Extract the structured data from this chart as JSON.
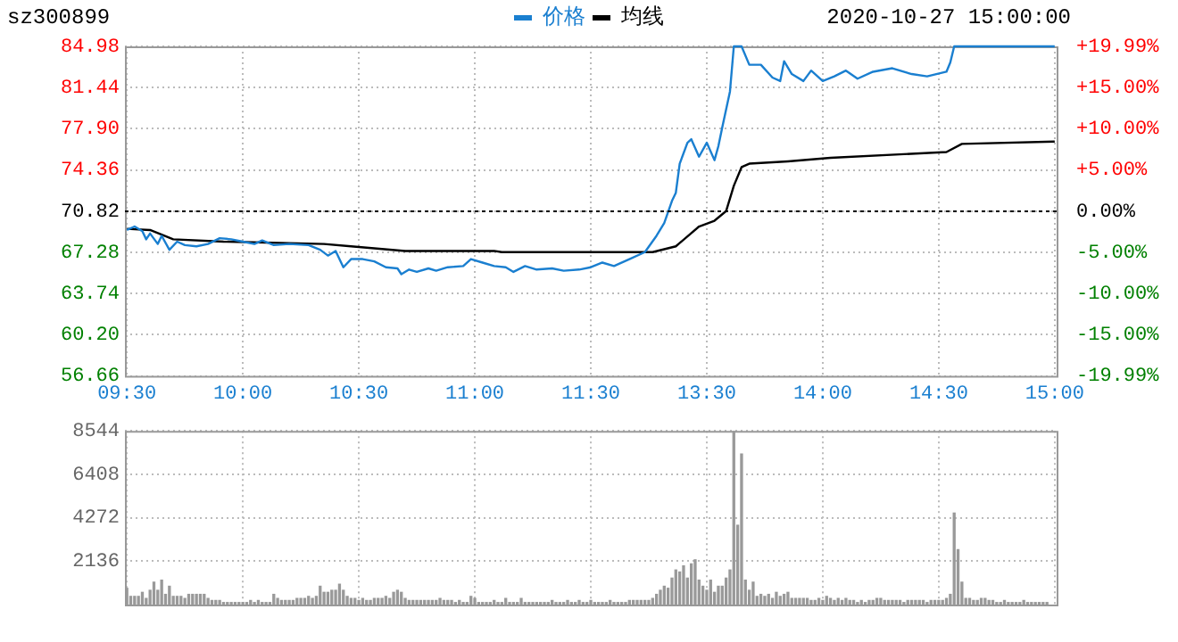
{
  "chart_data": [
    {
      "type": "line",
      "title": "sz300899",
      "subtitle": "2020-10-27 15:00:00",
      "legend": "top",
      "grid": true,
      "categories": [
        "09:30",
        null,
        null,
        null,
        null,
        null,
        null,
        null,
        null,
        null,
        null,
        null,
        null,
        null,
        null,
        null,
        null,
        null,
        null,
        null,
        null,
        null,
        null,
        null,
        null,
        null,
        null,
        null,
        null,
        null,
        "10:00",
        null,
        null,
        null,
        null,
        null,
        null,
        null,
        null,
        null,
        null,
        null,
        null,
        null,
        null,
        null,
        null,
        null,
        null,
        null,
        null,
        null,
        null,
        null,
        null,
        null,
        null,
        null,
        null,
        null,
        "10:30",
        null,
        null,
        null,
        null,
        null,
        null,
        null,
        null,
        null,
        null,
        null,
        null,
        null,
        null,
        null,
        null,
        null,
        null,
        null,
        null,
        null,
        null,
        null,
        null,
        null,
        null,
        null,
        null,
        null,
        "11:00",
        null,
        null,
        null,
        null,
        null,
        null,
        null,
        null,
        null,
        null,
        null,
        null,
        null,
        null,
        null,
        null,
        null,
        null,
        null,
        null,
        null,
        null,
        null,
        null,
        null,
        null,
        null,
        null,
        null,
        "11:30",
        null,
        null,
        null,
        null,
        null,
        null,
        null,
        null,
        null,
        null,
        null,
        null,
        null,
        null,
        null,
        null,
        null,
        null,
        null,
        null,
        null,
        null,
        null,
        null,
        null,
        null,
        null,
        null,
        null,
        "13:30",
        null,
        null,
        null,
        null,
        null,
        null,
        null,
        null,
        null,
        null,
        null,
        null,
        null,
        null,
        null,
        null,
        null,
        null,
        null,
        null,
        null,
        null,
        null,
        null,
        null,
        null,
        null,
        null,
        null,
        "14:00",
        null,
        null,
        null,
        null,
        null,
        null,
        null,
        null,
        null,
        null,
        null,
        null,
        null,
        null,
        null,
        null,
        null,
        null,
        null,
        null,
        null,
        null,
        null,
        null,
        null,
        null,
        null,
        null,
        null,
        "14:30",
        null,
        null,
        null,
        null,
        null,
        null,
        null,
        null,
        null,
        null,
        null,
        null,
        null,
        null,
        null,
        null,
        null,
        null,
        null,
        null,
        null,
        null,
        null,
        null,
        null,
        null,
        null,
        null,
        null,
        "15:00"
      ],
      "ylim": [
        56.66,
        84.98
      ],
      "yticks": [
        56.66,
        {
          "value": 60.2,
          "label": "60.20"
        },
        63.74,
        67.28,
        70.82,
        74.36,
        {
          "value": 77.9,
          "label": "77.90"
        },
        81.44,
        84.98
      ],
      "y2lim": [
        -19.99,
        19.99
      ],
      "y2ticks": [
        {
          "value": -19.99,
          "label": "-19.99%"
        },
        {
          "value": -15,
          "label": "-15.00%"
        },
        {
          "value": -10,
          "label": "-10.00%"
        },
        {
          "value": -5,
          "label": "-5.00%"
        },
        {
          "value": 0,
          "label": "0.00%"
        },
        {
          "value": 5,
          "label": "+5.00%"
        },
        {
          "value": 10,
          "label": "+10.00%"
        },
        {
          "value": 15,
          "label": "+15.00%"
        },
        {
          "value": 19.99,
          "label": "+19.99%"
        }
      ],
      "ref_lines": [
        {
          "axis": "y",
          "value": 70.82,
          "color": "#000000",
          "line_style": "dashed"
        }
      ],
      "series": [
        {
          "name": "价格",
          "color": "#1a7fd0",
          "values": [
            69.2,
            null,
            69.5,
            null,
            69.1,
            68.4,
            68.9,
            null,
            68.0,
            68.7,
            null,
            67.5,
            null,
            68.2,
            null,
            67.9,
            null,
            null,
            67.8,
            null,
            null,
            68.0,
            null,
            null,
            68.5,
            null,
            null,
            68.4,
            null,
            null,
            68.2,
            null,
            null,
            68.0,
            null,
            68.3,
            null,
            null,
            67.9,
            null,
            null,
            null,
            68.0,
            null,
            null,
            null,
            null,
            67.9,
            null,
            null,
            67.5,
            null,
            67.0,
            null,
            67.4,
            null,
            66.0,
            null,
            66.7,
            null,
            null,
            66.7,
            null,
            null,
            66.5,
            null,
            null,
            66.0,
            null,
            null,
            65.9,
            65.4,
            null,
            65.8,
            null,
            65.6,
            null,
            null,
            65.9,
            null,
            65.7,
            null,
            null,
            66.0,
            null,
            null,
            null,
            66.1,
            null,
            66.7,
            null,
            null,
            66.4,
            null,
            null,
            66.1,
            null,
            null,
            66.0,
            null,
            65.6,
            null,
            null,
            66.1,
            null,
            null,
            65.8,
            null,
            null,
            null,
            65.9,
            null,
            null,
            65.7,
            null,
            null,
            null,
            65.8,
            null,
            null,
            66.0,
            null,
            null,
            66.4,
            null,
            null,
            66.1,
            null,
            null,
            null,
            66.7,
            null,
            null,
            null,
            67.3,
            null,
            null,
            68.7,
            null,
            69.8,
            null,
            71.7,
            72.4,
            74.9,
            null,
            76.7,
            77.0,
            null,
            75.5,
            null,
            76.7,
            null,
            75.2,
            76.4,
            78.0,
            null,
            81.1,
            84.98,
            null,
            84.98,
            null,
            83.4,
            null,
            null,
            83.4,
            null,
            null,
            82.3,
            null,
            82.0,
            83.7,
            null,
            82.6,
            null,
            null,
            82.0,
            null,
            82.9,
            null,
            null,
            82.0,
            null,
            null,
            82.4,
            null,
            null,
            82.9,
            null,
            null,
            82.2,
            null,
            null,
            null,
            82.8,
            null,
            null,
            null,
            null,
            83.1,
            null,
            null,
            null,
            null,
            82.6,
            null,
            null,
            null,
            82.4,
            null,
            null,
            null,
            null,
            82.8,
            83.6,
            84.98,
            null,
            null,
            null,
            null,
            null,
            null,
            null,
            null,
            null,
            null,
            null,
            null,
            null,
            null,
            null,
            null,
            null,
            null,
            null,
            null,
            null,
            null,
            null,
            null,
            null,
            84.98
          ]
        },
        {
          "name": "均线",
          "color": "#000000",
          "values": [
            69.3,
            null,
            null,
            null,
            null,
            null,
            69.2,
            null,
            null,
            null,
            null,
            null,
            68.4,
            null,
            null,
            null,
            null,
            null,
            null,
            null,
            null,
            null,
            null,
            null,
            null,
            68.2,
            null,
            null,
            null,
            null,
            null,
            null,
            null,
            null,
            null,
            null,
            null,
            null,
            null,
            null,
            null,
            null,
            null,
            null,
            null,
            null,
            null,
            null,
            null,
            null,
            null,
            68.0,
            null,
            null,
            null,
            null,
            null,
            null,
            67.8,
            null,
            null,
            null,
            null,
            null,
            null,
            null,
            null,
            null,
            null,
            null,
            null,
            null,
            67.4,
            null,
            null,
            null,
            null,
            null,
            null,
            null,
            null,
            null,
            null,
            null,
            null,
            null,
            null,
            null,
            null,
            null,
            null,
            null,
            null,
            null,
            null,
            67.4,
            null,
            67.3,
            null,
            null,
            null,
            null,
            null,
            null,
            null,
            null,
            null,
            null,
            null,
            null,
            null,
            null,
            null,
            null,
            null,
            null,
            null,
            null,
            null,
            null,
            null,
            null,
            null,
            null,
            null,
            null,
            null,
            null,
            null,
            null,
            null,
            null,
            null,
            null,
            null,
            null,
            67.3,
            null,
            null,
            null,
            null,
            null,
            67.8,
            null,
            null,
            null,
            null,
            null,
            69.5,
            null,
            null,
            null,
            70.0,
            null,
            null,
            70.82,
            null,
            73.0,
            null,
            74.6,
            null,
            74.9,
            null,
            null,
            null,
            null,
            null,
            null,
            null,
            null,
            null,
            75.1,
            null,
            null,
            null,
            null,
            null,
            null,
            null,
            null,
            null,
            null,
            75.4,
            null,
            null,
            null,
            null,
            null,
            null,
            null,
            null,
            null,
            null,
            null,
            null,
            null,
            null,
            null,
            null,
            null,
            null,
            null,
            null,
            null,
            null,
            null,
            null,
            null,
            null,
            null,
            null,
            null,
            75.9,
            null,
            null,
            null,
            76.6,
            null,
            null,
            null,
            null,
            null,
            null,
            null,
            null,
            null,
            null,
            null,
            null,
            null,
            null,
            null,
            null,
            null,
            null,
            null,
            null,
            null,
            null,
            null,
            76.8
          ]
        }
      ]
    },
    {
      "type": "bar",
      "color": "#999999",
      "grid": true,
      "tick_labels": "y",
      "ylim": [
        0,
        8544
      ],
      "yticks": [
        2136,
        4272,
        6408,
        8544
      ],
      "categories": [
        null,
        null,
        null,
        null,
        null,
        null,
        null,
        null,
        null,
        null,
        null,
        null,
        null,
        null,
        null,
        null,
        null,
        null,
        null,
        null,
        null,
        null,
        null,
        null,
        null,
        null,
        null,
        null,
        null,
        null,
        null,
        null,
        null,
        null,
        null,
        null,
        null,
        null,
        null,
        null,
        null,
        null,
        null,
        null,
        null,
        null,
        null,
        null,
        null,
        null,
        null,
        null,
        null,
        null,
        null,
        null,
        null,
        null,
        null,
        null,
        null,
        null,
        null,
        null,
        null,
        null,
        null,
        null,
        null,
        null,
        null,
        null,
        null,
        null,
        null,
        null,
        null,
        null,
        null,
        null,
        null,
        null,
        null,
        null,
        null,
        null,
        null,
        null,
        null,
        null,
        null,
        null,
        null,
        null,
        null,
        null,
        null,
        null,
        null,
        null,
        null,
        null,
        null,
        null,
        null,
        null,
        null,
        null,
        null,
        null,
        null,
        null,
        null,
        null,
        null,
        null,
        null,
        null,
        null,
        null,
        null,
        null,
        null,
        null,
        null,
        null,
        null,
        null,
        null,
        null,
        null,
        null,
        null,
        null,
        null,
        null,
        null,
        null,
        null,
        null,
        null,
        null,
        null,
        null,
        null,
        null,
        null,
        null,
        null,
        null,
        null,
        null,
        null,
        null,
        null,
        null,
        null,
        null,
        null,
        null,
        null,
        null,
        null,
        null,
        null,
        null,
        null,
        null,
        null,
        null,
        null,
        null,
        null,
        null,
        null,
        null,
        null,
        null,
        null,
        null,
        null,
        null,
        null,
        null,
        null,
        null,
        null,
        null,
        null,
        null,
        null,
        null,
        null,
        null,
        null,
        null,
        null,
        null,
        null,
        null,
        null,
        null,
        null,
        null,
        null,
        null,
        null,
        null,
        null,
        null,
        null,
        null,
        null,
        null,
        null,
        null,
        null,
        null,
        null,
        null,
        null,
        null,
        null,
        null,
        null,
        null,
        null,
        null,
        null,
        null,
        null,
        null,
        null,
        null,
        null,
        null,
        null,
        null,
        null,
        null,
        null
      ],
      "values": [
        800,
        400,
        400,
        400,
        600,
        300,
        700,
        1100,
        700,
        1200,
        500,
        900,
        400,
        400,
        400,
        300,
        500,
        500,
        500,
        500,
        500,
        300,
        200,
        200,
        200,
        100,
        100,
        100,
        100,
        100,
        100,
        100,
        200,
        100,
        200,
        100,
        100,
        100,
        500,
        300,
        200,
        200,
        200,
        200,
        300,
        300,
        300,
        400,
        300,
        400,
        900,
        600,
        600,
        700,
        700,
        1000,
        700,
        400,
        300,
        300,
        200,
        300,
        200,
        200,
        300,
        300,
        300,
        400,
        300,
        600,
        700,
        600,
        300,
        200,
        200,
        200,
        200,
        200,
        200,
        200,
        200,
        300,
        200,
        200,
        200,
        100,
        200,
        100,
        100,
        400,
        300,
        100,
        100,
        100,
        100,
        200,
        100,
        100,
        300,
        100,
        100,
        100,
        300,
        100,
        100,
        100,
        100,
        100,
        100,
        100,
        200,
        100,
        100,
        100,
        200,
        100,
        100,
        200,
        100,
        100,
        200,
        100,
        100,
        100,
        100,
        200,
        100,
        100,
        100,
        100,
        200,
        200,
        200,
        200,
        200,
        200,
        300,
        500,
        700,
        900,
        800,
        1300,
        1700,
        1600,
        1900,
        1300,
        2000,
        2200,
        1200,
        900,
        700,
        1200,
        600,
        900,
        900,
        1300,
        1700,
        8544,
        3900,
        7400,
        1200,
        700,
        1100,
        400,
        500,
        400,
        500,
        300,
        600,
        400,
        500,
        600,
        300,
        300,
        300,
        300,
        300,
        200,
        200,
        300,
        200,
        400,
        300,
        200,
        300,
        200,
        300,
        200,
        200,
        100,
        200,
        100,
        200,
        200,
        300,
        300,
        200,
        200,
        200,
        200,
        200,
        100,
        200,
        200,
        200,
        200,
        200,
        100,
        200,
        200,
        200,
        200,
        300,
        500,
        4500,
        2700,
        1100,
        300,
        300,
        200,
        200,
        300,
        300,
        200,
        200,
        100,
        100,
        200,
        100,
        100,
        100,
        100,
        200,
        100,
        100,
        100,
        100,
        100,
        100,
        null,
        null
      ]
    }
  ]
}
